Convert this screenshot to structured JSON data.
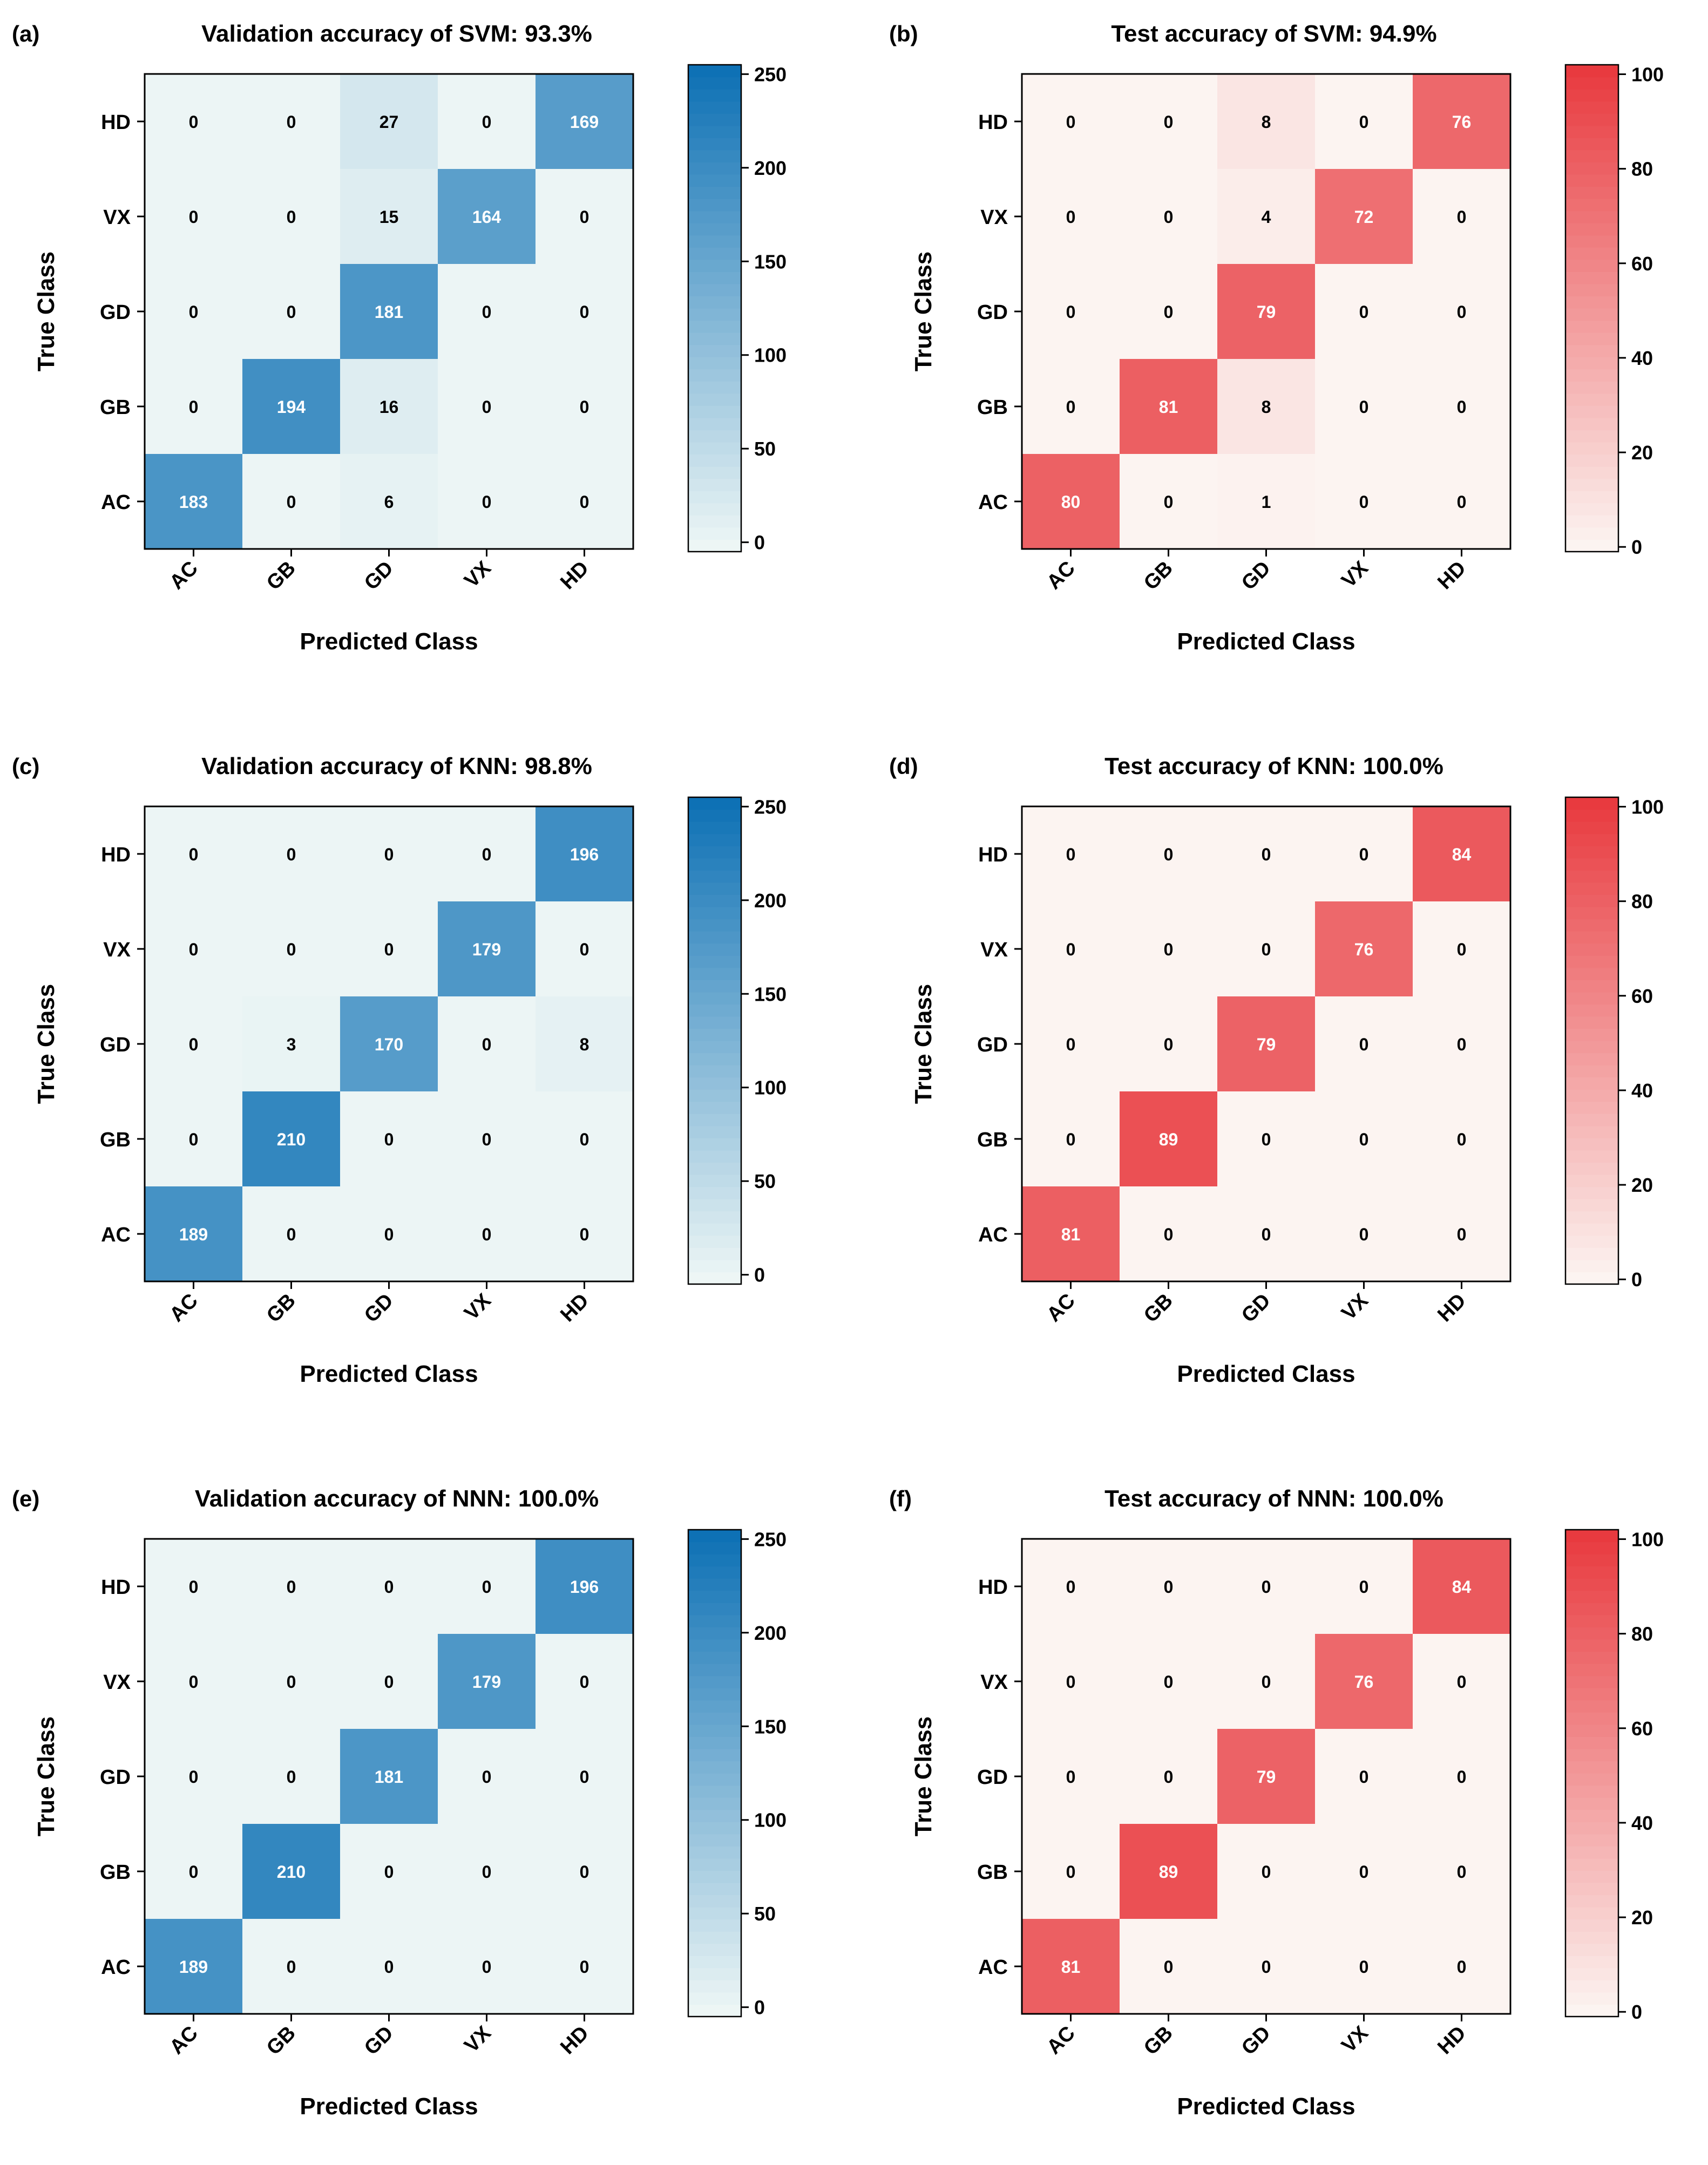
{
  "chart_data": [
    {
      "type": "heatmap",
      "panel_label": "(a)",
      "title": "Validation accuracy of SVM: 93.3%",
      "xlabel": "Predicted Class",
      "ylabel": "True Class",
      "x_categories": [
        "AC",
        "GB",
        "GD",
        "VX",
        "HD"
      ],
      "y_categories": [
        "AC",
        "GB",
        "GD",
        "VX",
        "HD"
      ],
      "matrix": [
        [
          183,
          0,
          6,
          0,
          0
        ],
        [
          0,
          194,
          16,
          0,
          0
        ],
        [
          0,
          0,
          181,
          0,
          0
        ],
        [
          0,
          0,
          15,
          164,
          0
        ],
        [
          0,
          0,
          27,
          0,
          169
        ]
      ],
      "colormap": "blue",
      "vmin": -5,
      "vmax": 255,
      "colorbar_ticks": [
        0,
        50,
        100,
        150,
        200,
        250
      ],
      "colorbar_tick_labels": [
        "0",
        "50",
        "100",
        "150",
        "200",
        "250"
      ]
    },
    {
      "type": "heatmap",
      "panel_label": "(b)",
      "title": "Test accuracy of SVM: 94.9%",
      "xlabel": "Predicted Class",
      "ylabel": "True Class",
      "x_categories": [
        "AC",
        "GB",
        "GD",
        "VX",
        "HD"
      ],
      "y_categories": [
        "AC",
        "GB",
        "GD",
        "VX",
        "HD"
      ],
      "matrix": [
        [
          80,
          0,
          1,
          0,
          0
        ],
        [
          0,
          81,
          8,
          0,
          0
        ],
        [
          0,
          0,
          79,
          0,
          0
        ],
        [
          0,
          0,
          4,
          72,
          0
        ],
        [
          0,
          0,
          8,
          0,
          76
        ]
      ],
      "colormap": "red",
      "vmin": -1,
      "vmax": 102,
      "colorbar_ticks": [
        0,
        20,
        40,
        60,
        80,
        100
      ],
      "colorbar_tick_labels": [
        "0",
        "20",
        "40",
        "60",
        "80",
        "100"
      ]
    },
    {
      "type": "heatmap",
      "panel_label": "(c)",
      "title": "Validation accuracy of KNN: 98.8%",
      "xlabel": "Predicted Class",
      "ylabel": "True Class",
      "x_categories": [
        "AC",
        "GB",
        "GD",
        "VX",
        "HD"
      ],
      "y_categories": [
        "AC",
        "GB",
        "GD",
        "VX",
        "HD"
      ],
      "matrix": [
        [
          189,
          0,
          0,
          0,
          0
        ],
        [
          0,
          210,
          0,
          0,
          0
        ],
        [
          0,
          3,
          170,
          0,
          8
        ],
        [
          0,
          0,
          0,
          179,
          0
        ],
        [
          0,
          0,
          0,
          0,
          196
        ]
      ],
      "colormap": "blue",
      "vmin": -5,
      "vmax": 255,
      "colorbar_ticks": [
        0,
        50,
        100,
        150,
        200,
        250
      ],
      "colorbar_tick_labels": [
        "0",
        "50",
        "100",
        "150",
        "200",
        "250"
      ]
    },
    {
      "type": "heatmap",
      "panel_label": "(d)",
      "title": "Test accuracy of KNN: 100.0%",
      "xlabel": "Predicted Class",
      "ylabel": "True Class",
      "x_categories": [
        "AC",
        "GB",
        "GD",
        "VX",
        "HD"
      ],
      "y_categories": [
        "AC",
        "GB",
        "GD",
        "VX",
        "HD"
      ],
      "matrix": [
        [
          81,
          0,
          0,
          0,
          0
        ],
        [
          0,
          89,
          0,
          0,
          0
        ],
        [
          0,
          0,
          79,
          0,
          0
        ],
        [
          0,
          0,
          0,
          76,
          0
        ],
        [
          0,
          0,
          0,
          0,
          84
        ]
      ],
      "colormap": "red",
      "vmin": -1,
      "vmax": 102,
      "colorbar_ticks": [
        0,
        20,
        40,
        60,
        80,
        100
      ],
      "colorbar_tick_labels": [
        "0",
        "20",
        "40",
        "60",
        "80",
        "100"
      ]
    },
    {
      "type": "heatmap",
      "panel_label": "(e)",
      "title": "Validation accuracy of NNN: 100.0%",
      "xlabel": "Predicted Class",
      "ylabel": "True Class",
      "x_categories": [
        "AC",
        "GB",
        "GD",
        "VX",
        "HD"
      ],
      "y_categories": [
        "AC",
        "GB",
        "GD",
        "VX",
        "HD"
      ],
      "matrix": [
        [
          189,
          0,
          0,
          0,
          0
        ],
        [
          0,
          210,
          0,
          0,
          0
        ],
        [
          0,
          0,
          181,
          0,
          0
        ],
        [
          0,
          0,
          0,
          179,
          0
        ],
        [
          0,
          0,
          0,
          0,
          196
        ]
      ],
      "colormap": "blue",
      "vmin": -5,
      "vmax": 255,
      "colorbar_ticks": [
        0,
        50,
        100,
        150,
        200,
        250
      ],
      "colorbar_tick_labels": [
        "0",
        "50",
        "100",
        "150",
        "200",
        "250"
      ]
    },
    {
      "type": "heatmap",
      "panel_label": "(f)",
      "title": "Test accuracy of NNN: 100.0%",
      "xlabel": "Predicted Class",
      "ylabel": "True Class",
      "x_categories": [
        "AC",
        "GB",
        "GD",
        "VX",
        "HD"
      ],
      "y_categories": [
        "AC",
        "GB",
        "GD",
        "VX",
        "HD"
      ],
      "matrix": [
        [
          81,
          0,
          0,
          0,
          0
        ],
        [
          0,
          89,
          0,
          0,
          0
        ],
        [
          0,
          0,
          79,
          0,
          0
        ],
        [
          0,
          0,
          0,
          76,
          0
        ],
        [
          0,
          0,
          0,
          0,
          84
        ]
      ],
      "colormap": "red",
      "vmin": -1,
      "vmax": 102,
      "colorbar_ticks": [
        0,
        20,
        40,
        60,
        80,
        100
      ],
      "colorbar_tick_labels": [
        "0",
        "20",
        "40",
        "60",
        "80",
        "100"
      ]
    }
  ],
  "colors": {
    "blue_low": "#f0f8f6",
    "blue_high": "#0b6fb4",
    "red_low": "#fcf6f3",
    "red_high": "#e8383d",
    "text_dark": "#000000",
    "text_light": "#ffffff"
  }
}
